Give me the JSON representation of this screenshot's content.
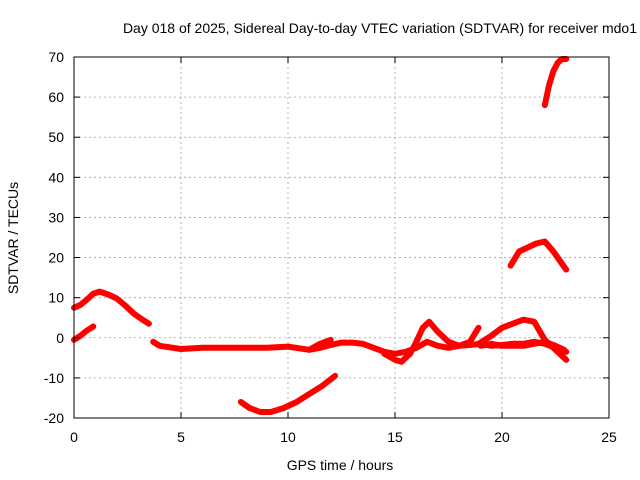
{
  "chart_data": {
    "type": "line",
    "title": "Day 018 of 2025, Sidereal Day-to-day VTEC variation (SDTVAR) for receiver mdo1",
    "xlabel": "GPS time / hours",
    "ylabel": "SDTVAR / TECUs",
    "xlim": [
      0,
      25
    ],
    "ylim": [
      -20,
      70
    ],
    "x_ticks": [
      0,
      5,
      10,
      15,
      20,
      25
    ],
    "y_ticks": [
      -20,
      -10,
      0,
      10,
      20,
      30,
      40,
      50,
      60,
      70
    ],
    "x_tick_labels": [
      "0",
      "5",
      "10",
      "15",
      "20",
      "25"
    ],
    "y_tick_labels": [
      "-20",
      "-10",
      "0",
      "10",
      "20",
      "30",
      "40",
      "50",
      "60",
      "70"
    ],
    "grid": true,
    "legend": "none",
    "color": "#ff0000",
    "series": [
      {
        "x": [
          0.0,
          0.3,
          0.6,
          0.9,
          1.2,
          1.6,
          2.0,
          2.4,
          2.8,
          3.2,
          3.5
        ],
        "y": [
          7.5,
          8.2,
          9.5,
          11.0,
          11.5,
          10.8,
          9.8,
          8.0,
          6.0,
          4.5,
          3.5
        ]
      },
      {
        "x": [
          0.0,
          0.3,
          0.6,
          0.9
        ],
        "y": [
          -0.5,
          0.5,
          1.8,
          2.8
        ]
      },
      {
        "x": [
          3.7,
          4.0,
          5.0,
          6.0,
          7.0,
          8.0,
          9.0,
          10.0,
          11.0,
          11.5,
          12.0,
          12.5,
          13.0,
          13.5,
          14.0,
          14.5,
          15.0,
          15.5,
          16.0,
          16.5,
          17.0,
          17.5,
          18.0,
          18.5,
          19.0,
          19.5,
          20.0,
          20.5,
          21.0,
          21.5,
          22.0,
          22.5,
          23.0
        ],
        "y": [
          -1.0,
          -2.0,
          -2.8,
          -2.5,
          -2.5,
          -2.5,
          -2.5,
          -2.2,
          -3.0,
          -2.5,
          -1.8,
          -1.2,
          -1.2,
          -1.5,
          -2.5,
          -3.5,
          -4.0,
          -3.5,
          -2.5,
          -1.0,
          -2.0,
          -2.5,
          -2.0,
          -1.8,
          -1.5,
          -2.0,
          -1.8,
          -1.5,
          -1.5,
          -1.0,
          -1.5,
          -2.5,
          -3.5
        ]
      },
      {
        "x": [
          11.0,
          11.5,
          12.0
        ],
        "y": [
          -3.0,
          -1.5,
          -0.5
        ]
      },
      {
        "x": [
          14.5,
          15.0,
          15.3,
          15.7,
          16.0,
          16.3,
          16.6,
          17.0,
          17.5,
          18.0,
          18.5,
          18.9
        ],
        "y": [
          -4.0,
          -5.5,
          -6.0,
          -4.0,
          -1.0,
          2.5,
          4.0,
          1.5,
          -1.0,
          -2.0,
          -1.0,
          2.5
        ]
      },
      {
        "x": [
          18.9,
          19.5,
          20.0,
          20.5,
          21.0,
          21.5,
          22.0,
          22.5,
          23.0
        ],
        "y": [
          -1.5,
          0.5,
          2.5,
          3.5,
          4.5,
          4.0,
          -0.5,
          -3.0,
          -5.5
        ]
      },
      {
        "x": [
          19.0,
          19.5,
          20.0,
          20.5,
          21.0,
          21.5,
          22.0,
          22.5,
          22.9
        ],
        "y": [
          -2.0,
          -1.5,
          -2.0,
          -2.0,
          -2.0,
          -1.5,
          -1.0,
          -2.0,
          -3.0
        ]
      },
      {
        "x": [
          7.8,
          8.2,
          8.7,
          9.2,
          9.8,
          10.4,
          11.0,
          11.6,
          12.2
        ],
        "y": [
          -16.0,
          -17.5,
          -18.5,
          -18.5,
          -17.5,
          -16.0,
          -14.0,
          -12.0,
          -9.5
        ]
      },
      {
        "x": [
          20.4,
          20.8,
          21.2,
          21.6,
          22.0,
          22.4,
          22.8,
          23.0
        ],
        "y": [
          18.0,
          21.5,
          22.5,
          23.5,
          24.0,
          21.5,
          18.5,
          17.0
        ]
      },
      {
        "x": [
          22.0,
          22.2,
          22.4,
          22.6,
          22.8,
          23.0
        ],
        "y": [
          58.0,
          63.0,
          66.5,
          68.5,
          69.5,
          69.5
        ]
      }
    ]
  }
}
